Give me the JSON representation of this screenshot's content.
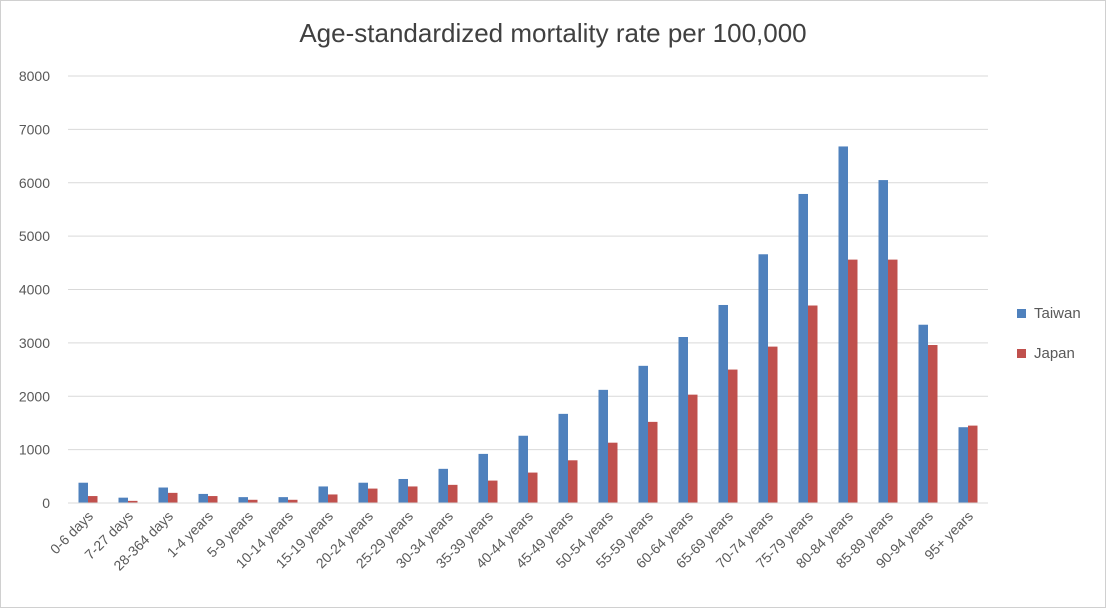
{
  "chart_data": {
    "type": "bar",
    "title": "Age-standardized mortality rate per 100,000",
    "xlabel": "",
    "ylabel": "",
    "ylim": [
      0,
      8000
    ],
    "yticks": [
      0,
      1000,
      2000,
      3000,
      4000,
      5000,
      6000,
      7000,
      8000
    ],
    "grid": true,
    "legend_position": "right",
    "categories": [
      "0-6 days",
      "7-27 days",
      "28-364 days",
      "1-4 years",
      "5-9 years",
      "10-14 years",
      "15-19 years",
      "20-24 years",
      "25-29 years",
      "30-34 years",
      "35-39 years",
      "40-44 years",
      "45-49 years",
      "50-54 years",
      "55-59 years",
      "60-64 years",
      "65-69 years",
      "70-74 years",
      "75-79 years",
      "80-84 years",
      "85-89 years",
      "90-94 years",
      "95+ years"
    ],
    "series": [
      {
        "name": "Taiwan",
        "color": "#4f81bd",
        "values": [
          380,
          100,
          290,
          170,
          110,
          110,
          310,
          380,
          450,
          640,
          920,
          1260,
          1670,
          2120,
          2570,
          3110,
          3710,
          4660,
          5790,
          6680,
          6050,
          3340,
          1420
        ]
      },
      {
        "name": "Japan",
        "color": "#c0504d",
        "values": [
          130,
          40,
          190,
          130,
          60,
          60,
          160,
          270,
          310,
          340,
          420,
          570,
          800,
          1130,
          1520,
          2030,
          2500,
          2930,
          3700,
          4560,
          4560,
          2960,
          1450
        ]
      }
    ]
  }
}
